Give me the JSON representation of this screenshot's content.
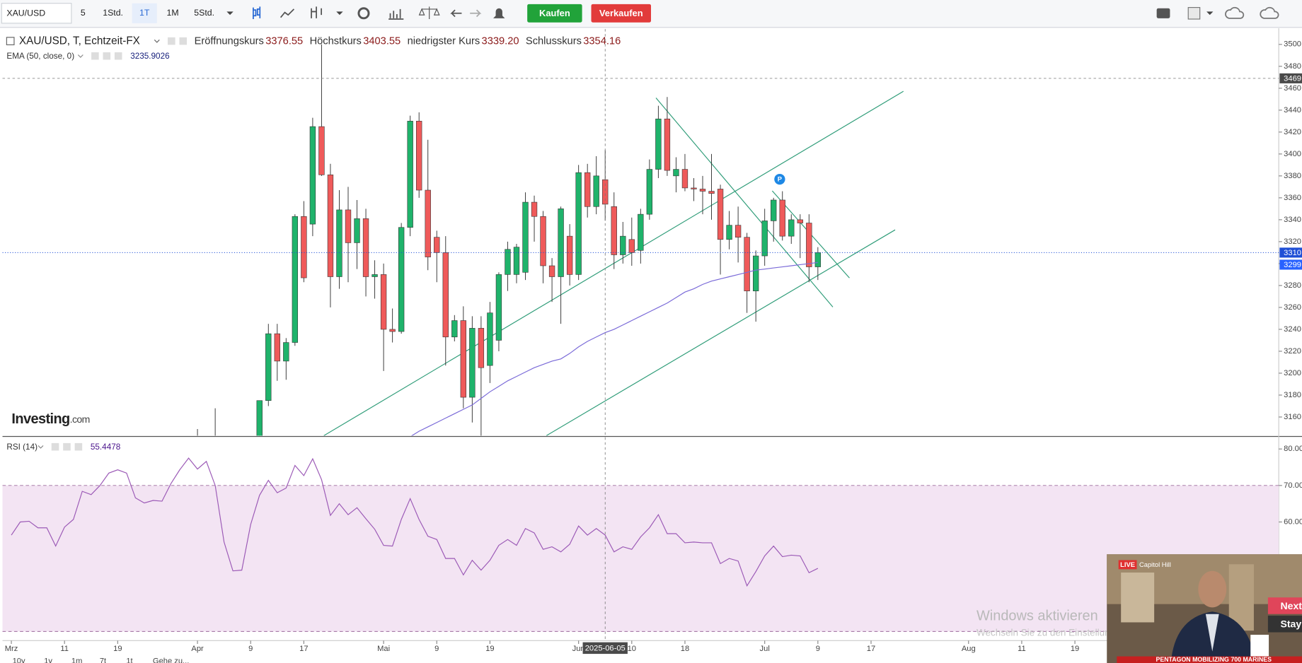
{
  "toolbar": {
    "symbol": "XAU/USD",
    "intervals": [
      "5",
      "1Std.",
      "1T",
      "1M",
      "5Std."
    ],
    "buy": "Kaufen",
    "sell": "Verkaufen"
  },
  "legend": {
    "instrument": "XAU/USD, T, Echtzeit-FX",
    "fields": [
      {
        "label": "Eröffnungskurs",
        "value": "3376.55"
      },
      {
        "label": "Höchstkurs",
        "value": "3403.55"
      },
      {
        "label": "niedrigster Kurs",
        "value": "3339.20"
      },
      {
        "label": "Schlusskurs",
        "value": "3354.16"
      }
    ],
    "ema_label": "EMA (50, close, 0)",
    "ema_value": "3235.9026",
    "rsi_label": "RSI (14)",
    "rsi_value": "55.4478"
  },
  "logo": {
    "name": "Investing",
    "suffix": ".com"
  },
  "ranges": [
    "10y",
    "1y",
    "1m",
    "7t",
    "1t",
    "Gehe zu..."
  ],
  "watermark": {
    "title": "Windows aktivieren",
    "text": "Wechseln Sie zu den Einstellungen, um Windows zu aktivieren."
  },
  "video": {
    "live": "LIVE",
    "place": "Capitol Hill",
    "next": "Next",
    "stay": "Stay",
    "ticker": "PENTAGON MOBILIZING 700 MARINES"
  },
  "chart_data": [
    {
      "type": "candlestick",
      "up_color": "#1fb36b",
      "down_color": "#ef5a5a",
      "x": [
        21,
        22,
        23,
        24,
        25,
        26,
        27,
        28,
        29,
        30,
        31,
        32,
        33,
        34,
        35,
        36,
        37,
        38,
        39,
        40,
        41,
        42,
        43,
        44,
        45,
        46,
        47,
        48,
        49,
        50,
        51,
        52,
        53,
        54,
        55,
        56,
        57,
        58,
        59,
        60,
        61,
        62,
        63,
        64,
        65,
        66,
        67,
        68,
        69,
        70,
        71,
        72,
        73,
        74,
        75,
        76,
        77,
        78,
        79,
        80,
        81,
        82,
        83,
        84,
        85,
        86,
        87,
        88,
        89,
        90,
        91
      ],
      "open": [
        3123,
        3113,
        3133,
        3114,
        3037,
        2982,
        2983,
        3083,
        3175,
        3236,
        3211,
        3228,
        3343,
        3336,
        3425,
        3381,
        3288,
        3349,
        3319,
        3341,
        3288,
        3290,
        3240,
        3238,
        3333,
        3430,
        3367,
        3324,
        3310,
        3233,
        3248,
        3178,
        3241,
        3207,
        3230,
        3290,
        3290,
        3292,
        3356,
        3343,
        3298,
        3288,
        3325,
        3290,
        3383,
        3352,
        3376.55,
        3352,
        3308,
        3322,
        3312,
        3345,
        3386,
        3432,
        3380,
        3386,
        3369,
        3368,
        3366,
        3368,
        3322,
        3335,
        3324,
        3275,
        3307,
        3339,
        3358,
        3325,
        3340,
        3337,
        3297
      ],
      "high": [
        3149,
        3135,
        3168,
        3136,
        3055,
        3023,
        3099,
        3175,
        3245,
        3245,
        3232,
        3345,
        3357,
        3433,
        3500,
        3391,
        3367,
        3370,
        3358,
        3350,
        3303,
        3300,
        3259,
        3337,
        3435,
        3438,
        3413,
        3330,
        3325,
        3253,
        3261,
        3252,
        3252,
        3265,
        3292,
        3320,
        3318,
        3365,
        3362,
        3348,
        3305,
        3352,
        3336,
        3390,
        3391,
        3398,
        3403.55,
        3365,
        3338,
        3342,
        3350,
        3395,
        3444,
        3452,
        3397,
        3400,
        3378,
        3380,
        3400,
        3372,
        3348,
        3352,
        3328,
        3312,
        3350,
        3360,
        3366,
        3345,
        3345,
        3345,
        3315
      ],
      "low": [
        3100,
        3105,
        3054,
        3015,
        2957,
        2970,
        2957,
        3073,
        3170,
        3193,
        3194,
        3225,
        3283,
        3325,
        3380,
        3260,
        3277,
        3283,
        3295,
        3270,
        3268,
        3202,
        3228,
        3236,
        3325,
        3360,
        3294,
        3283,
        3207,
        3229,
        3168,
        3155,
        3141,
        3191,
        3220,
        3275,
        3282,
        3285,
        3320,
        3282,
        3265,
        3245,
        3280,
        3285,
        3342,
        3345,
        3339.2,
        3295,
        3300,
        3298,
        3300,
        3340,
        3378,
        3380,
        3365,
        3366,
        3357,
        3345,
        3340,
        3290,
        3313,
        3301,
        3255,
        3247,
        3298,
        3320,
        3321,
        3318,
        3305,
        3283,
        3285
      ],
      "close": [
        3113,
        3133,
        3114,
        3037,
        2982,
        2983,
        3083,
        3175,
        3236,
        3211,
        3228,
        3343,
        3287,
        3425,
        3381,
        3288,
        3349,
        3319,
        3341,
        3288,
        3290,
        3240,
        3238,
        3333,
        3430,
        3367,
        3306,
        3310,
        3233,
        3248,
        3178,
        3241,
        3205,
        3255,
        3290,
        3313,
        3315,
        3356,
        3343,
        3298,
        3288,
        3350,
        3290,
        3383,
        3352,
        3380,
        3354.16,
        3308,
        3325,
        3310,
        3345,
        3386,
        3432,
        3385,
        3386,
        3369,
        3368,
        3366,
        3364,
        3322,
        3335,
        3324,
        3275,
        3307,
        3339,
        3358,
        3325,
        3340,
        3337,
        3297,
        3310
      ],
      "overlay": {
        "name": "EMA (50, close, 0)",
        "color": "#7a6ad8",
        "values": [
          3040,
          3044,
          3048,
          3050,
          3050,
          3049,
          3050,
          3055,
          3062,
          3068,
          3074,
          3085,
          3094,
          3106,
          3114,
          3121,
          3128,
          3130,
          3133,
          3134,
          3135,
          3136,
          3137,
          3140,
          3142,
          3147,
          3151,
          3155,
          3159,
          3163,
          3167,
          3171,
          3177,
          3183,
          3188,
          3193,
          3197,
          3201,
          3205,
          3208,
          3211,
          3213,
          3218,
          3224,
          3229,
          3233,
          3237,
          3240,
          3244,
          3248,
          3252,
          3256,
          3260,
          3264,
          3269,
          3274,
          3277,
          3281,
          3284,
          3286,
          3288,
          3290,
          3292,
          3294,
          3295,
          3296,
          3297,
          3298,
          3299,
          3300,
          3301
        ]
      },
      "xlim": [
        -1,
        143
      ],
      "xticks": [
        {
          "value": 0,
          "label": "Mrz"
        },
        {
          "value": 6,
          "label": "11"
        },
        {
          "value": 12,
          "label": "19"
        },
        {
          "value": 21,
          "label": "Apr"
        },
        {
          "value": 27,
          "label": "9"
        },
        {
          "value": 33,
          "label": "17"
        },
        {
          "value": 42,
          "label": "Mai"
        },
        {
          "value": 48,
          "label": "9"
        },
        {
          "value": 54,
          "label": "19"
        },
        {
          "value": 64,
          "label": "Jun"
        },
        {
          "value": 70,
          "label": "10"
        },
        {
          "value": 76,
          "label": "18"
        },
        {
          "value": 85,
          "label": "Jul"
        },
        {
          "value": 91,
          "label": "9"
        },
        {
          "value": 97,
          "label": "17"
        },
        {
          "value": 108,
          "label": "Aug"
        },
        {
          "value": 114,
          "label": "11"
        },
        {
          "value": 120,
          "label": "19"
        }
      ],
      "ylim": [
        3143,
        3514
      ],
      "yticks": [
        3160,
        3180,
        3200,
        3220,
        3240,
        3260,
        3280,
        3300,
        3320,
        3340,
        3360,
        3380,
        3400,
        3420,
        3440,
        3460,
        3480,
        3500
      ],
      "crosshair": {
        "x": {
          "value": 67,
          "label": "2025-06-05"
        },
        "y": 3469
      },
      "price_markers": [
        {
          "value": 3310,
          "color": "#1f4fd6"
        },
        {
          "value": 3299,
          "color": "#2962ff"
        }
      ]
    },
    {
      "type": "line",
      "name": "RSI (14)",
      "color": "#9b59b6",
      "band_color": "#f3e4f3",
      "x": [
        0,
        1,
        2,
        3,
        4,
        5,
        6,
        7,
        8,
        9,
        10,
        11,
        12,
        13,
        14,
        15,
        16,
        17,
        18,
        19,
        20,
        21,
        22,
        23,
        24,
        25,
        26,
        27,
        28,
        29,
        30,
        31,
        32,
        33,
        34,
        35,
        36,
        37,
        38,
        39,
        40,
        41,
        42,
        43,
        44,
        45,
        46,
        47,
        48,
        49,
        50,
        51,
        52,
        53,
        54,
        55,
        56,
        57,
        58,
        59,
        60,
        61,
        62,
        63,
        64,
        65,
        66,
        67,
        68,
        69,
        70,
        71,
        72,
        73,
        74,
        75,
        76,
        77,
        78,
        79,
        80,
        81,
        82,
        83,
        84,
        85,
        86,
        87,
        88,
        89,
        90,
        91
      ],
      "values": [
        56.4,
        60.0,
        60.2,
        58.4,
        58.4,
        53.4,
        58.6,
        60.7,
        68.4,
        67.5,
        70.0,
        73.4,
        74.3,
        73.4,
        66.6,
        65.2,
        65.9,
        65.7,
        70.5,
        74.3,
        77.5,
        74.5,
        76.6,
        70.0,
        54.5,
        46.6,
        46.8,
        59.3,
        67.3,
        71.4,
        68.0,
        69.3,
        75.5,
        72.7,
        77.3,
        71.6,
        61.8,
        65.0,
        62.0,
        63.9,
        60.9,
        58.0,
        53.6,
        53.4,
        60.7,
        66.4,
        60.7,
        56.1,
        55.2,
        50.0,
        50.0,
        45.5,
        49.5,
        46.8,
        49.5,
        53.6,
        55.2,
        53.6,
        58.2,
        57.0,
        52.5,
        53.2,
        51.8,
        53.9,
        58.9,
        56.4,
        58.2,
        56.4,
        51.8,
        53.2,
        52.5,
        55.9,
        58.4,
        62.0,
        56.8,
        56.8,
        54.3,
        54.5,
        54.3,
        54.3,
        48.6,
        50.0,
        49.3,
        42.5,
        46.4,
        50.7,
        53.4,
        50.5,
        50.9,
        50.7,
        46.1,
        47.3
      ],
      "xlim": [
        -1,
        143
      ],
      "ylim": [
        27.5,
        83.2
      ],
      "yticks": [
        {
          "value": 80,
          "label": "80.00"
        },
        {
          "value": 70,
          "label": "70.00"
        },
        {
          "value": 60,
          "label": "60.00"
        }
      ],
      "levels": [
        30,
        70
      ]
    }
  ]
}
